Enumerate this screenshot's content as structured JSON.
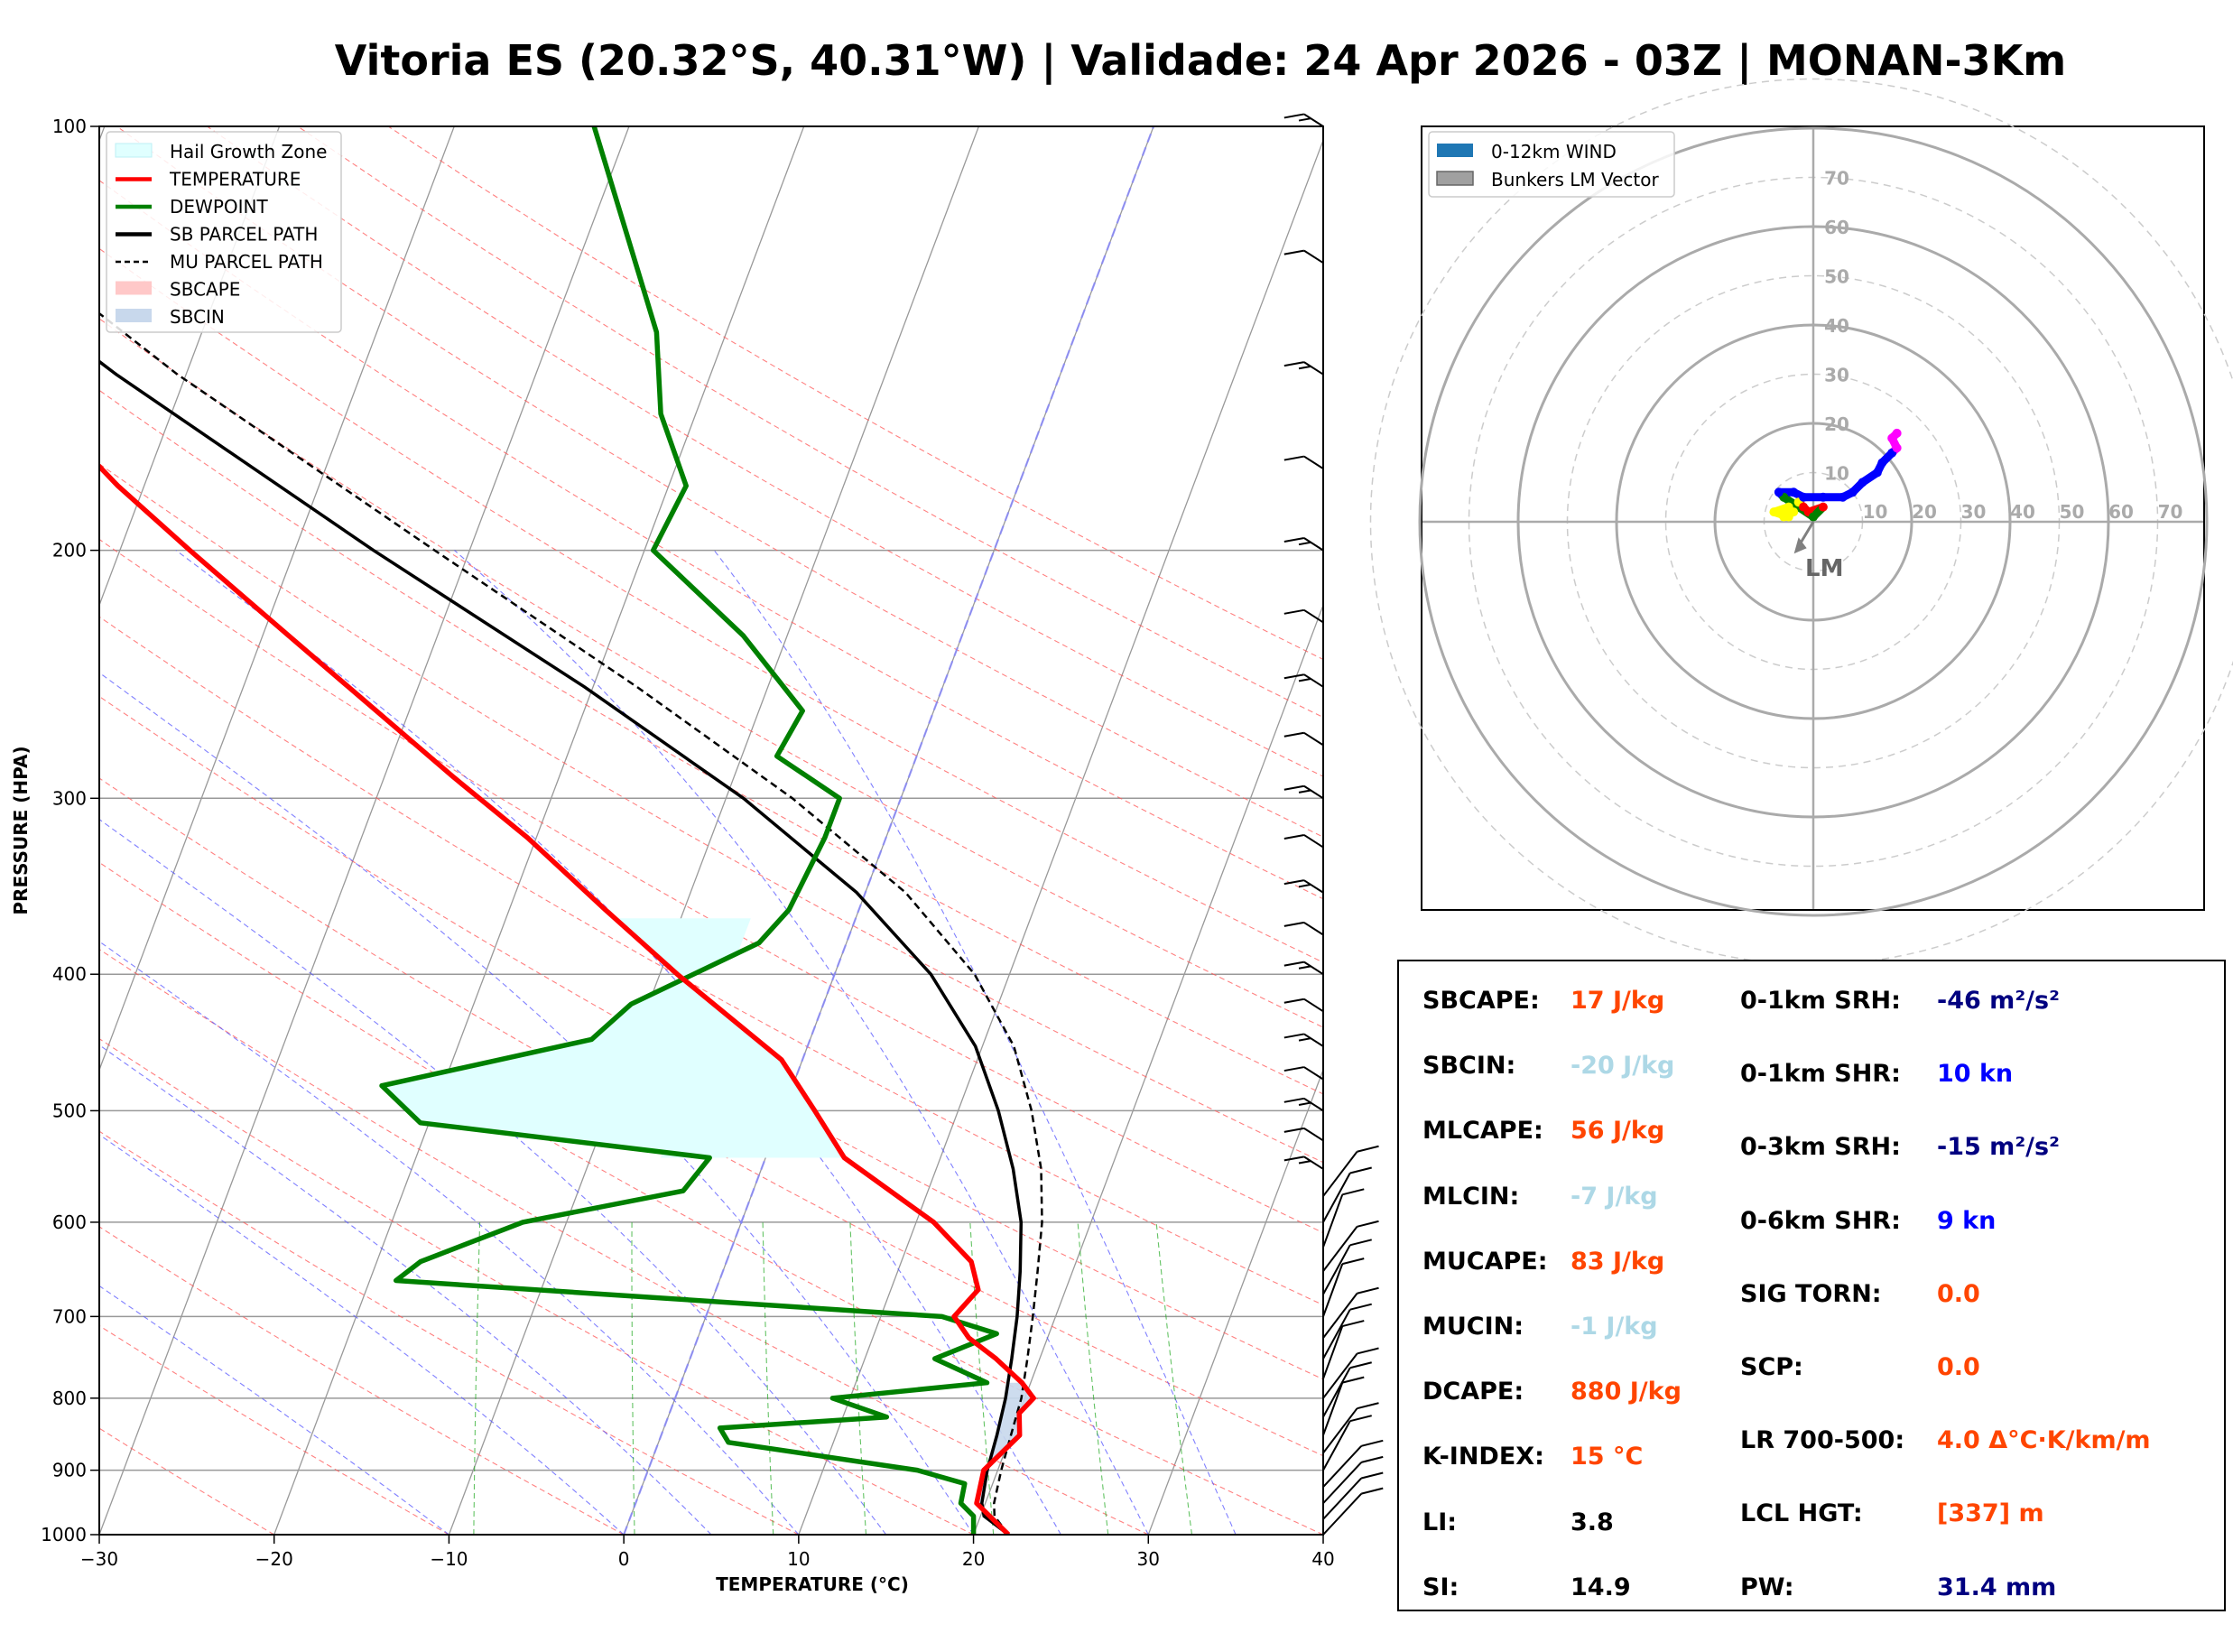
{
  "title": "Vitoria ES (20.32°S, 40.31°W) | Validade: 24 Apr 2026 - 03Z | MONAN-3Km",
  "skewt": {
    "xlabel": "TEMPERATURE (°C)",
    "ylabel": "PRESSURE (HPA)",
    "x_ticks": [
      "−30",
      "−20",
      "−10",
      "0",
      "10",
      "20",
      "30",
      "40"
    ],
    "y_ticks": [
      "100",
      "200",
      "300",
      "400",
      "500",
      "600",
      "700",
      "800",
      "900",
      "1000"
    ],
    "legend": [
      {
        "label": "Hail Growth Zone",
        "kind": "patch",
        "color": "#e0ffff"
      },
      {
        "label": "TEMPERATURE",
        "kind": "line",
        "color": "#ff0000"
      },
      {
        "label": "DEWPOINT",
        "kind": "line",
        "color": "#008000"
      },
      {
        "label": "SB PARCEL PATH",
        "kind": "line",
        "color": "#000000"
      },
      {
        "label": "MU PARCEL PATH",
        "kind": "dashed",
        "color": "#000000"
      },
      {
        "label": "SBCAPE",
        "kind": "patch",
        "color": "#ffc8c8"
      },
      {
        "label": "SBCIN",
        "kind": "patch",
        "color": "#c8d8ec"
      }
    ]
  },
  "hodograph": {
    "legend": [
      {
        "label": "0-12km WIND",
        "color": "#1f77b4"
      },
      {
        "label": "Bunkers LM Vector",
        "color": "#a0a0a0"
      }
    ],
    "ring_labels": [
      "10",
      "20",
      "30",
      "40",
      "50",
      "60",
      "70"
    ],
    "lm_label": "LM"
  },
  "params": {
    "left": [
      {
        "label": "SBCAPE:",
        "value": "17 J/kg",
        "color": "#ff4500"
      },
      {
        "label": "SBCIN:",
        "value": "-20 J/kg",
        "color": "#add8e6"
      },
      {
        "label": "MLCAPE:",
        "value": "56 J/kg",
        "color": "#ff4500"
      },
      {
        "label": "MLCIN:",
        "value": "-7 J/kg",
        "color": "#add8e6"
      },
      {
        "label": "MUCAPE:",
        "value": "83 J/kg",
        "color": "#ff4500"
      },
      {
        "label": "MUCIN:",
        "value": "-1 J/kg",
        "color": "#add8e6"
      },
      {
        "label": "DCAPE:",
        "value": "880 J/kg",
        "color": "#ff4500"
      },
      {
        "label": "K-INDEX:",
        "value": "15 °C",
        "color": "#ff4500"
      },
      {
        "label": "LI:",
        "value": "3.8",
        "color": "#000000"
      },
      {
        "label": "SI:",
        "value": "14.9",
        "color": "#000000"
      }
    ],
    "right": [
      {
        "label": "0-1km SRH:",
        "value": "-46 m²/s²",
        "color": "#000080"
      },
      {
        "label": "0-1km SHR:",
        "value": "10 kn",
        "color": "#0000ff"
      },
      {
        "label": "0-3km SRH:",
        "value": "-15 m²/s²",
        "color": "#000080"
      },
      {
        "label": "0-6km SHR:",
        "value": "9 kn",
        "color": "#0000ff"
      },
      {
        "label": "SIG TORN:",
        "value": "0.0",
        "color": "#ff4500"
      },
      {
        "label": "SCP:",
        "value": "0.0",
        "color": "#ff4500"
      },
      {
        "label": "LR 700-500:",
        "value": "4.0 Δ°C·K/km/m",
        "color": "#ff4500"
      },
      {
        "label": "LCL HGT:",
        "value": "[337] m",
        "color": "#ff4500"
      },
      {
        "label": "PW:",
        "value": "31.4 mm",
        "color": "#000080"
      }
    ]
  },
  "chart_data": [
    {
      "type": "line",
      "chart": "skew-t log-p",
      "xlabel": "TEMPERATURE (°C)",
      "ylabel": "PRESSURE (HPA)",
      "xlim": [
        -30,
        40
      ],
      "ylim": [
        1000,
        100
      ],
      "y_scale": "log",
      "grid": true,
      "legend_position": "top-left",
      "series": [
        {
          "name": "TEMPERATURE",
          "color": "#ff0000",
          "points": [
            [
              1000,
              22
            ],
            [
              950,
              19.5
            ],
            [
              900,
              19.2
            ],
            [
              850,
              20.5
            ],
            [
              820,
              20
            ],
            [
              800,
              20.5
            ],
            [
              780,
              19.5
            ],
            [
              750,
              17.5
            ],
            [
              725,
              15.5
            ],
            [
              700,
              14.2
            ],
            [
              670,
              15
            ],
            [
              640,
              14
            ],
            [
              600,
              11
            ],
            [
              540,
              4.5
            ],
            [
              500,
              1.8
            ],
            [
              460,
              -1.2
            ],
            [
              400,
              -9
            ],
            [
              360,
              -14.5
            ],
            [
              320,
              -20.5
            ],
            [
              290,
              -26
            ],
            [
              250,
              -34
            ],
            [
              230,
              -38.5
            ],
            [
              200,
              -46
            ],
            [
              180,
              -51.5
            ],
            [
              160,
              -57
            ],
            [
              140,
              -61
            ],
            [
              120,
              -64
            ],
            [
              110,
              -64
            ],
            [
              100,
              -63
            ]
          ]
        },
        {
          "name": "DEWPOINT",
          "color": "#008000",
          "points": [
            [
              1000,
              20
            ],
            [
              970,
              19.6
            ],
            [
              950,
              18.6
            ],
            [
              920,
              18.4
            ],
            [
              900,
              15.4
            ],
            [
              860,
              4
            ],
            [
              840,
              3.2
            ],
            [
              825,
              12.5
            ],
            [
              800,
              9
            ],
            [
              780,
              17.5
            ],
            [
              750,
              14
            ],
            [
              720,
              17
            ],
            [
              700,
              13.5
            ],
            [
              660,
              -18.5
            ],
            [
              640,
              -17.5
            ],
            [
              600,
              -12.5
            ],
            [
              570,
              -4
            ],
            [
              540,
              -3.2
            ],
            [
              510,
              -20.5
            ],
            [
              480,
              -23.5
            ],
            [
              445,
              -12.5
            ],
            [
              420,
              -11
            ],
            [
              380,
              -5
            ],
            [
              360,
              -4
            ],
            [
              320,
              -3.5
            ],
            [
              300,
              -3.5
            ],
            [
              280,
              -8
            ],
            [
              260,
              -7.5
            ],
            [
              230,
              -12.5
            ],
            [
              200,
              -19.5
            ],
            [
              180,
              -19
            ],
            [
              160,
              -22
            ],
            [
              140,
              -24
            ],
            [
              100,
              -32
            ]
          ]
        },
        {
          "name": "SB PARCEL PATH",
          "color": "#000000",
          "points": [
            [
              1000,
              22
            ],
            [
              970,
              20.2
            ],
            [
              950,
              19.8
            ],
            [
              900,
              19.4
            ],
            [
              850,
              19.2
            ],
            [
              800,
              18.9
            ],
            [
              750,
              18.4
            ],
            [
              700,
              17.8
            ],
            [
              650,
              17
            ],
            [
              600,
              16
            ],
            [
              550,
              14.4
            ],
            [
              500,
              12.3
            ],
            [
              450,
              9.6
            ],
            [
              400,
              5.5
            ],
            [
              350,
              -0.5
            ],
            [
              300,
              -9
            ],
            [
              250,
              -20.5
            ],
            [
              200,
              -35.5
            ],
            [
              150,
              -54
            ],
            [
              100,
              -78
            ]
          ]
        },
        {
          "name": "MU PARCEL PATH",
          "color": "#000000",
          "points": [
            [
              1000,
              22
            ],
            [
              970,
              20.8
            ],
            [
              950,
              20.5
            ],
            [
              900,
              20.2
            ],
            [
              850,
              20
            ],
            [
              800,
              19.8
            ],
            [
              750,
              19.3
            ],
            [
              700,
              18.7
            ],
            [
              650,
              18
            ],
            [
              600,
              17.2
            ],
            [
              550,
              16
            ],
            [
              500,
              14.2
            ],
            [
              450,
              11.8
            ],
            [
              400,
              8
            ],
            [
              350,
              2.3
            ],
            [
              300,
              -6.2
            ],
            [
              250,
              -17.5
            ],
            [
              200,
              -32
            ],
            [
              150,
              -50.5
            ],
            [
              100,
              -74
            ]
          ]
        }
      ]
    },
    {
      "type": "scatter",
      "chart": "hodograph",
      "units": "kn",
      "ring_max": 70,
      "legend_position": "top-left",
      "series": [
        {
          "name": "0-12km WIND",
          "color": "#1f77b4",
          "points": [
            [
              -5,
              1
            ],
            [
              -8,
              2
            ],
            [
              -5,
              3
            ],
            [
              -6,
              1
            ],
            [
              -4,
              2
            ],
            [
              -3,
              4
            ],
            [
              -2,
              3
            ],
            [
              -1,
              2
            ],
            [
              2,
              3
            ],
            [
              0,
              1
            ],
            [
              -6,
              5
            ],
            [
              -7,
              6
            ],
            [
              -4,
              6
            ],
            [
              -2,
              5
            ],
            [
              2,
              5
            ],
            [
              6,
              5
            ],
            [
              8,
              6
            ],
            [
              10,
              8
            ],
            [
              13,
              10
            ],
            [
              14,
              12
            ],
            [
              16,
              14
            ],
            [
              17,
              15
            ],
            [
              16,
              17
            ],
            [
              17,
              18
            ]
          ]
        }
      ],
      "lm_vector": [
        -3,
        -5
      ]
    }
  ]
}
